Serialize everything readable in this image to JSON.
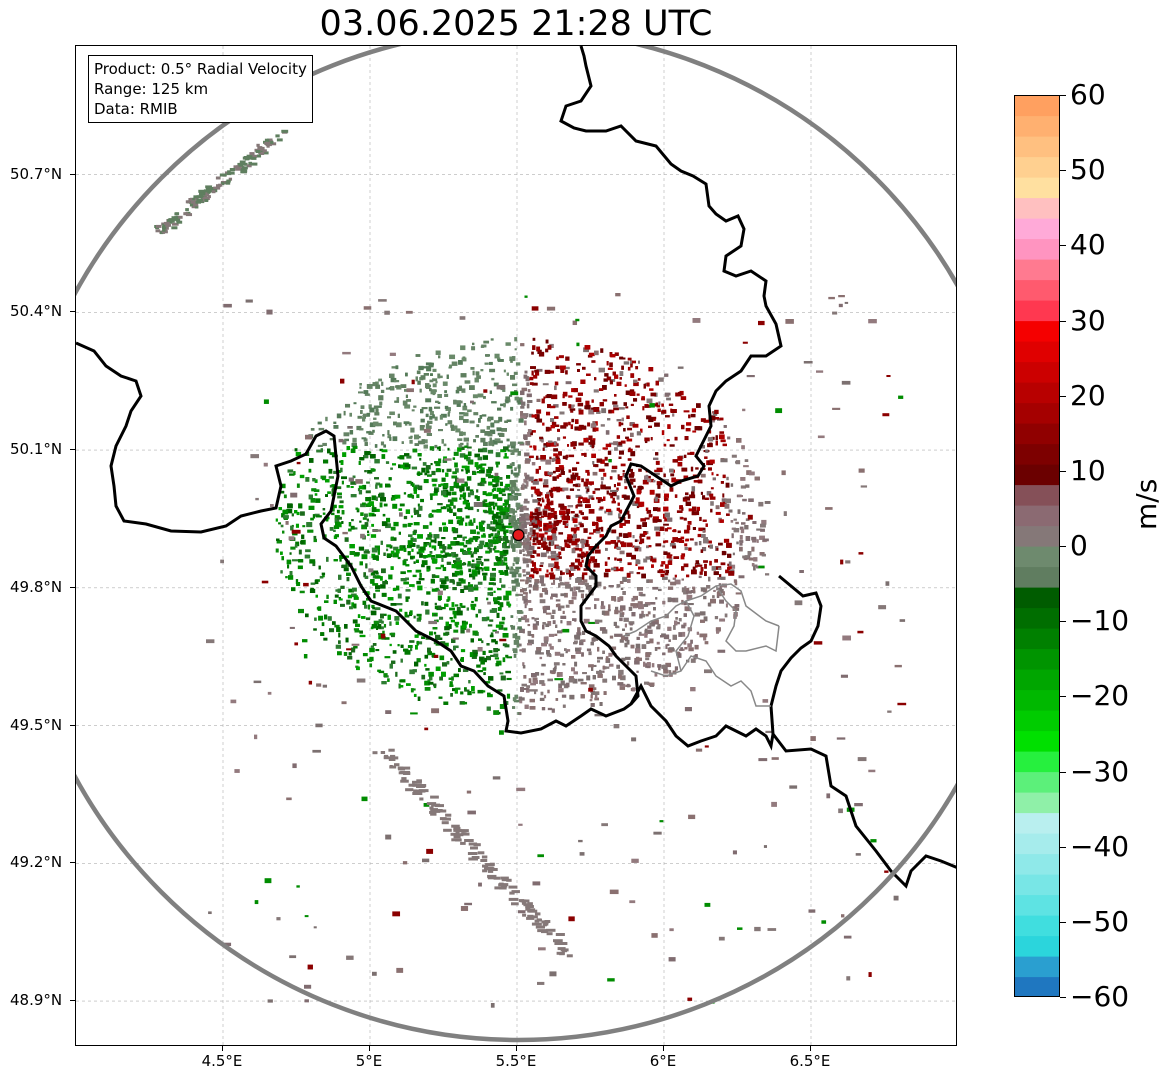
{
  "title": "03.06.2025 21:28 UTC",
  "info": {
    "product": "Product: 0.5° Radial Velocity",
    "range": "Range: 125 km",
    "source": "Data: RMIB"
  },
  "map": {
    "lon_range": [
      4.0,
      7.0
    ],
    "lat_range": [
      48.8,
      50.98
    ],
    "lat_ticks": [
      {
        "value": 50.7,
        "label": "50.7°N"
      },
      {
        "value": 50.4,
        "label": "50.4°N"
      },
      {
        "value": 50.1,
        "label": "50.1°N"
      },
      {
        "value": 49.8,
        "label": "49.8°N"
      },
      {
        "value": 49.5,
        "label": "49.5°N"
      },
      {
        "value": 49.2,
        "label": "49.2°N"
      },
      {
        "value": 48.9,
        "label": "48.9°N"
      }
    ],
    "lon_ticks": [
      {
        "value": 4.5,
        "label": "4.5°E"
      },
      {
        "value": 5.0,
        "label": "5°E"
      },
      {
        "value": 5.5,
        "label": "5.5°E"
      },
      {
        "value": 6.0,
        "label": "6°E"
      },
      {
        "value": 6.5,
        "label": "6.5°E"
      }
    ],
    "radar_site": {
      "lon": 5.505,
      "lat": 49.915,
      "color": "#e31a1c"
    },
    "range_ring_km": 125,
    "gridlines": true
  },
  "colorbar": {
    "unit": "m/s",
    "min": -60,
    "max": 60,
    "tick_labels": [
      "60",
      "50",
      "40",
      "30",
      "20",
      "10",
      "0",
      "−10",
      "−20",
      "−30",
      "−40",
      "−50",
      "−60"
    ],
    "colors": [
      "#1f77c0",
      "#2a9fd0",
      "#2bd5dc",
      "#40dedf",
      "#5ee3e3",
      "#78e6e6",
      "#8fe9e9",
      "#a6ecec",
      "#b9efef",
      "#8ff0a8",
      "#5cf07a",
      "#26f03e",
      "#00e000",
      "#00cc00",
      "#00b800",
      "#00a600",
      "#009400",
      "#008000",
      "#006e00",
      "#005c00",
      "#607d60",
      "#6e8a6e",
      "#857878",
      "#8b6a72",
      "#855058",
      "#6b0000",
      "#7d0000",
      "#900000",
      "#a50000",
      "#b80000",
      "#cc0000",
      "#e00000",
      "#f50000",
      "#ff3850",
      "#ff5a6e",
      "#ff7a90",
      "#ff94c0",
      "#ffaad8",
      "#ffc0c0",
      "#ffe0a0",
      "#ffd090",
      "#ffc080",
      "#ffb070",
      "#ffa060"
    ]
  }
}
